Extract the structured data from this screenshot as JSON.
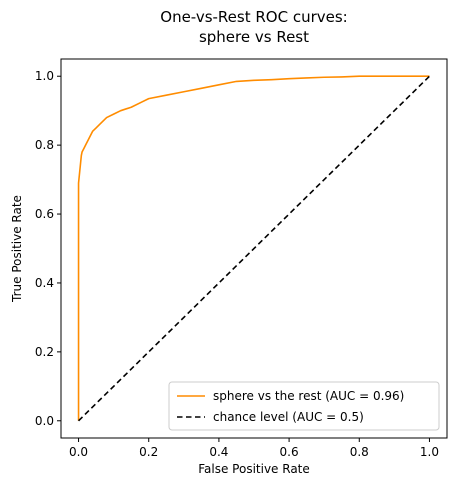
{
  "chart_data": {
    "type": "line",
    "title": [
      "One-vs-Rest ROC curves:",
      "sphere vs Rest"
    ],
    "xlabel": "False Positive Rate",
    "ylabel": "True Positive Rate",
    "xlim": [
      -0.05,
      1.05
    ],
    "ylim": [
      -0.05,
      1.05
    ],
    "xticks": [
      0.0,
      0.2,
      0.4,
      0.6,
      0.8,
      1.0
    ],
    "yticks": [
      0.0,
      0.2,
      0.4,
      0.6,
      0.8,
      1.0
    ],
    "xtick_labels": [
      "0.0",
      "0.2",
      "0.4",
      "0.6",
      "0.8",
      "1.0"
    ],
    "ytick_labels": [
      "0.0",
      "0.2",
      "0.4",
      "0.6",
      "0.8",
      "1.0"
    ],
    "grid": false,
    "legend_position": "lower-right",
    "series": [
      {
        "name": "sphere vs the rest (AUC = 0.96)",
        "color": "#ff8c00",
        "style": "solid",
        "x": [
          0,
          0,
          0.003,
          0.005,
          0.008,
          0.01,
          0.015,
          0.02,
          0.03,
          0.04,
          0.05,
          0.06,
          0.08,
          0.1,
          0.12,
          0.15,
          0.18,
          0.2,
          0.25,
          0.3,
          0.35,
          0.4,
          0.45,
          0.5,
          0.55,
          0.6,
          0.65,
          0.7,
          0.75,
          0.8,
          0.9,
          1.0
        ],
        "y": [
          0,
          0.69,
          0.72,
          0.74,
          0.77,
          0.78,
          0.79,
          0.8,
          0.82,
          0.84,
          0.85,
          0.86,
          0.88,
          0.89,
          0.9,
          0.91,
          0.925,
          0.935,
          0.945,
          0.955,
          0.965,
          0.975,
          0.985,
          0.988,
          0.99,
          0.993,
          0.995,
          0.997,
          0.998,
          1.0,
          1.0,
          1.0
        ]
      },
      {
        "name": "chance level (AUC = 0.5)",
        "color": "#000000",
        "style": "dashed",
        "x": [
          0,
          1
        ],
        "y": [
          0,
          1
        ]
      }
    ]
  }
}
